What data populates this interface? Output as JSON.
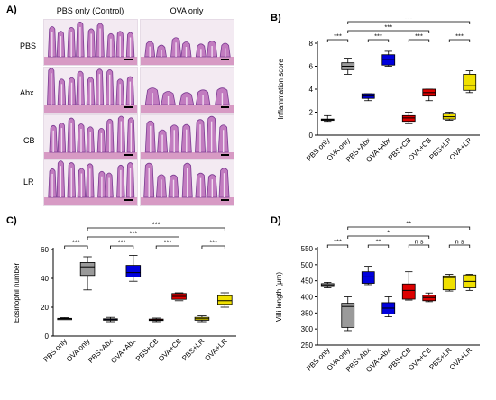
{
  "panels": {
    "A": {
      "letter": "A)",
      "col_left": "PBS only (Control)",
      "col_right": "OVA only",
      "rows": [
        "PBS",
        "Abx",
        "CB",
        "LR"
      ]
    },
    "B": {
      "letter": "B)"
    },
    "C": {
      "letter": "C)"
    },
    "D": {
      "letter": "D)"
    }
  },
  "chart_data": [
    {
      "id": "B",
      "type": "box",
      "ylabel": "Inflammation score",
      "ylim": [
        0,
        8
      ],
      "yticks": [
        0,
        2,
        4,
        6,
        8
      ],
      "categories": [
        "PBS only",
        "OVA only",
        "PBS+Abx",
        "OVA+Abx",
        "PBS+CB",
        "OVA+CB",
        "PBS+LR",
        "OVA+LR"
      ],
      "colors": [
        "#9a9a9a",
        "#9a9a9a",
        "#0000dd",
        "#0000dd",
        "#dd0000",
        "#dd0000",
        "#f0e000",
        "#f0e000"
      ],
      "boxes": [
        {
          "min": 1.2,
          "q1": 1.3,
          "median": 1.35,
          "q3": 1.4,
          "max": 1.7
        },
        {
          "min": 5.3,
          "q1": 5.7,
          "median": 6.0,
          "q3": 6.3,
          "max": 6.7
        },
        {
          "min": 3.0,
          "q1": 3.2,
          "median": 3.4,
          "q3": 3.6,
          "max": 3.6
        },
        {
          "min": 6.0,
          "q1": 6.1,
          "median": 6.6,
          "q3": 7.0,
          "max": 7.3
        },
        {
          "min": 1.0,
          "q1": 1.2,
          "median": 1.5,
          "q3": 1.7,
          "max": 2.0
        },
        {
          "min": 3.0,
          "q1": 3.4,
          "median": 3.7,
          "q3": 4.0,
          "max": 4.0
        },
        {
          "min": 1.3,
          "q1": 1.4,
          "median": 1.6,
          "q3": 1.9,
          "max": 2.0
        },
        {
          "min": 3.7,
          "q1": 3.9,
          "median": 4.3,
          "q3": 5.3,
          "max": 5.6
        }
      ],
      "brackets": [
        {
          "from": 0,
          "to": 1,
          "label": "***",
          "level": 0
        },
        {
          "from": 2,
          "to": 3,
          "label": "***",
          "level": 0
        },
        {
          "from": 4,
          "to": 5,
          "label": "***",
          "level": 0
        },
        {
          "from": 6,
          "to": 7,
          "label": "***",
          "level": 0
        },
        {
          "from": 1,
          "to": 5,
          "label": "***",
          "level": 1
        },
        {
          "from": 1,
          "to": 7,
          "label": "***",
          "level": 2
        }
      ]
    },
    {
      "id": "C",
      "type": "box",
      "ylabel": "Eosinophil number",
      "ylim": [
        0,
        60
      ],
      "yticks": [
        0,
        20,
        40,
        60
      ],
      "categories": [
        "PBS only",
        "OVA only",
        "PBS+Abx",
        "OVA+Abx",
        "PBS+CB",
        "OVA+CB",
        "PBS+LR",
        "OVA+LR"
      ],
      "colors": [
        "#9a9a9a",
        "#9a9a9a",
        "#0000dd",
        "#0000dd",
        "#dd0000",
        "#dd0000",
        "#f0e000",
        "#f0e000"
      ],
      "boxes": [
        {
          "min": 11.5,
          "q1": 12,
          "median": 12,
          "q3": 12.3,
          "max": 12.8
        },
        {
          "min": 32,
          "q1": 42,
          "median": 48,
          "q3": 51,
          "max": 55
        },
        {
          "min": 10,
          "q1": 11,
          "median": 11.5,
          "q3": 12,
          "max": 13
        },
        {
          "min": 38,
          "q1": 41,
          "median": 44,
          "q3": 49,
          "max": 56
        },
        {
          "min": 10,
          "q1": 10.8,
          "median": 11.2,
          "q3": 11.8,
          "max": 12.5
        },
        {
          "min": 24.5,
          "q1": 25.5,
          "median": 27.5,
          "q3": 29.5,
          "max": 30
        },
        {
          "min": 10,
          "q1": 11,
          "median": 12,
          "q3": 13,
          "max": 14
        },
        {
          "min": 20,
          "q1": 22,
          "median": 24.5,
          "q3": 28,
          "max": 30
        }
      ],
      "brackets": [
        {
          "from": 0,
          "to": 1,
          "label": "***",
          "level": 0
        },
        {
          "from": 2,
          "to": 3,
          "label": "***",
          "level": 0
        },
        {
          "from": 4,
          "to": 5,
          "label": "***",
          "level": 0
        },
        {
          "from": 6,
          "to": 7,
          "label": "***",
          "level": 0
        },
        {
          "from": 1,
          "to": 5,
          "label": "***",
          "level": 1
        },
        {
          "from": 1,
          "to": 7,
          "label": "***",
          "level": 2
        }
      ]
    },
    {
      "id": "D",
      "type": "box",
      "ylabel": "Villi length (μm)",
      "ylim": [
        250,
        550
      ],
      "yticks": [
        250,
        300,
        350,
        400,
        450,
        500,
        550
      ],
      "categories": [
        "PBS only",
        "OVA only",
        "PBS+Abx",
        "OVA+Abx",
        "PBS+CB",
        "OVA+CB",
        "PBS+LR",
        "OVA+LR"
      ],
      "colors": [
        "#9a9a9a",
        "#9a9a9a",
        "#0000dd",
        "#0000dd",
        "#dd0000",
        "#dd0000",
        "#f0e000",
        "#f0e000"
      ],
      "boxes": [
        {
          "min": 428,
          "q1": 432,
          "median": 437,
          "q3": 441,
          "max": 445
        },
        {
          "min": 295,
          "q1": 305,
          "median": 370,
          "q3": 380,
          "max": 400
        },
        {
          "min": 438,
          "q1": 442,
          "median": 462,
          "q3": 478,
          "max": 495
        },
        {
          "min": 338,
          "q1": 347,
          "median": 365,
          "q3": 382,
          "max": 400
        },
        {
          "min": 390,
          "q1": 393,
          "median": 420,
          "q3": 440,
          "max": 478
        },
        {
          "min": 385,
          "q1": 388,
          "median": 398,
          "q3": 405,
          "max": 412
        },
        {
          "min": 418,
          "q1": 422,
          "median": 460,
          "q3": 465,
          "max": 470
        },
        {
          "min": 420,
          "q1": 428,
          "median": 448,
          "q3": 468,
          "max": 470
        }
      ],
      "brackets": [
        {
          "from": 0,
          "to": 1,
          "label": "***",
          "level": 0
        },
        {
          "from": 2,
          "to": 3,
          "label": "**",
          "level": 0
        },
        {
          "from": 4,
          "to": 5,
          "label": "n s",
          "level": 0
        },
        {
          "from": 6,
          "to": 7,
          "label": "n s",
          "level": 0
        },
        {
          "from": 1,
          "to": 5,
          "label": "*",
          "level": 1
        },
        {
          "from": 1,
          "to": 7,
          "label": "**",
          "level": 2
        }
      ]
    }
  ]
}
